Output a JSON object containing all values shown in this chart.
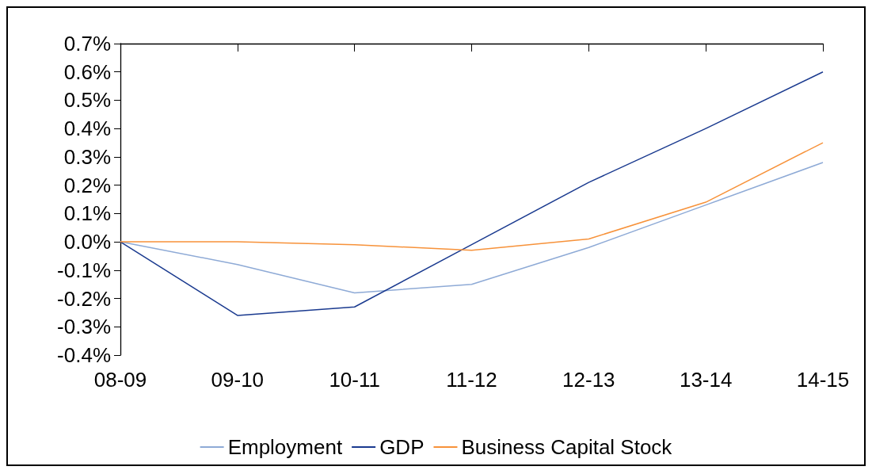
{
  "chart_data": {
    "type": "line",
    "categories": [
      "08-09",
      "09-10",
      "10-11",
      "11-12",
      "12-13",
      "13-14",
      "14-15"
    ],
    "series": [
      {
        "name": "Employment",
        "color": "#8eaad6",
        "values": [
          0,
          -0.08,
          -0.18,
          -0.15,
          -0.02,
          0.13,
          0.28
        ]
      },
      {
        "name": "GDP",
        "color": "#1a3a8f",
        "values": [
          0,
          -0.26,
          -0.23,
          -0.01,
          0.21,
          0.4,
          0.6
        ]
      },
      {
        "name": "Business Capital Stock",
        "color": "#f7923a",
        "values": [
          0,
          0,
          -0.01,
          -0.03,
          0.01,
          0.14,
          0.35
        ]
      }
    ],
    "ylim": [
      -0.4,
      0.7
    ],
    "yticks": [
      {
        "value": -0.4,
        "label": "-0.4%"
      },
      {
        "value": -0.3,
        "label": "-0.3%"
      },
      {
        "value": -0.2,
        "label": "-0.2%"
      },
      {
        "value": -0.1,
        "label": "-0.1%"
      },
      {
        "value": 0,
        "label": "0.0%"
      },
      {
        "value": 0.1,
        "label": "0.1%"
      },
      {
        "value": 0.2,
        "label": "0.2%"
      },
      {
        "value": 0.3,
        "label": "0.3%"
      },
      {
        "value": 0.4,
        "label": "0.4%"
      },
      {
        "value": 0.5,
        "label": "0.5%"
      },
      {
        "value": 0.6,
        "label": "0.6%"
      },
      {
        "value": 0.7,
        "label": "0.7%"
      }
    ],
    "grid": false,
    "legend": "bottom",
    "marker": "none",
    "line_style": "solid"
  }
}
